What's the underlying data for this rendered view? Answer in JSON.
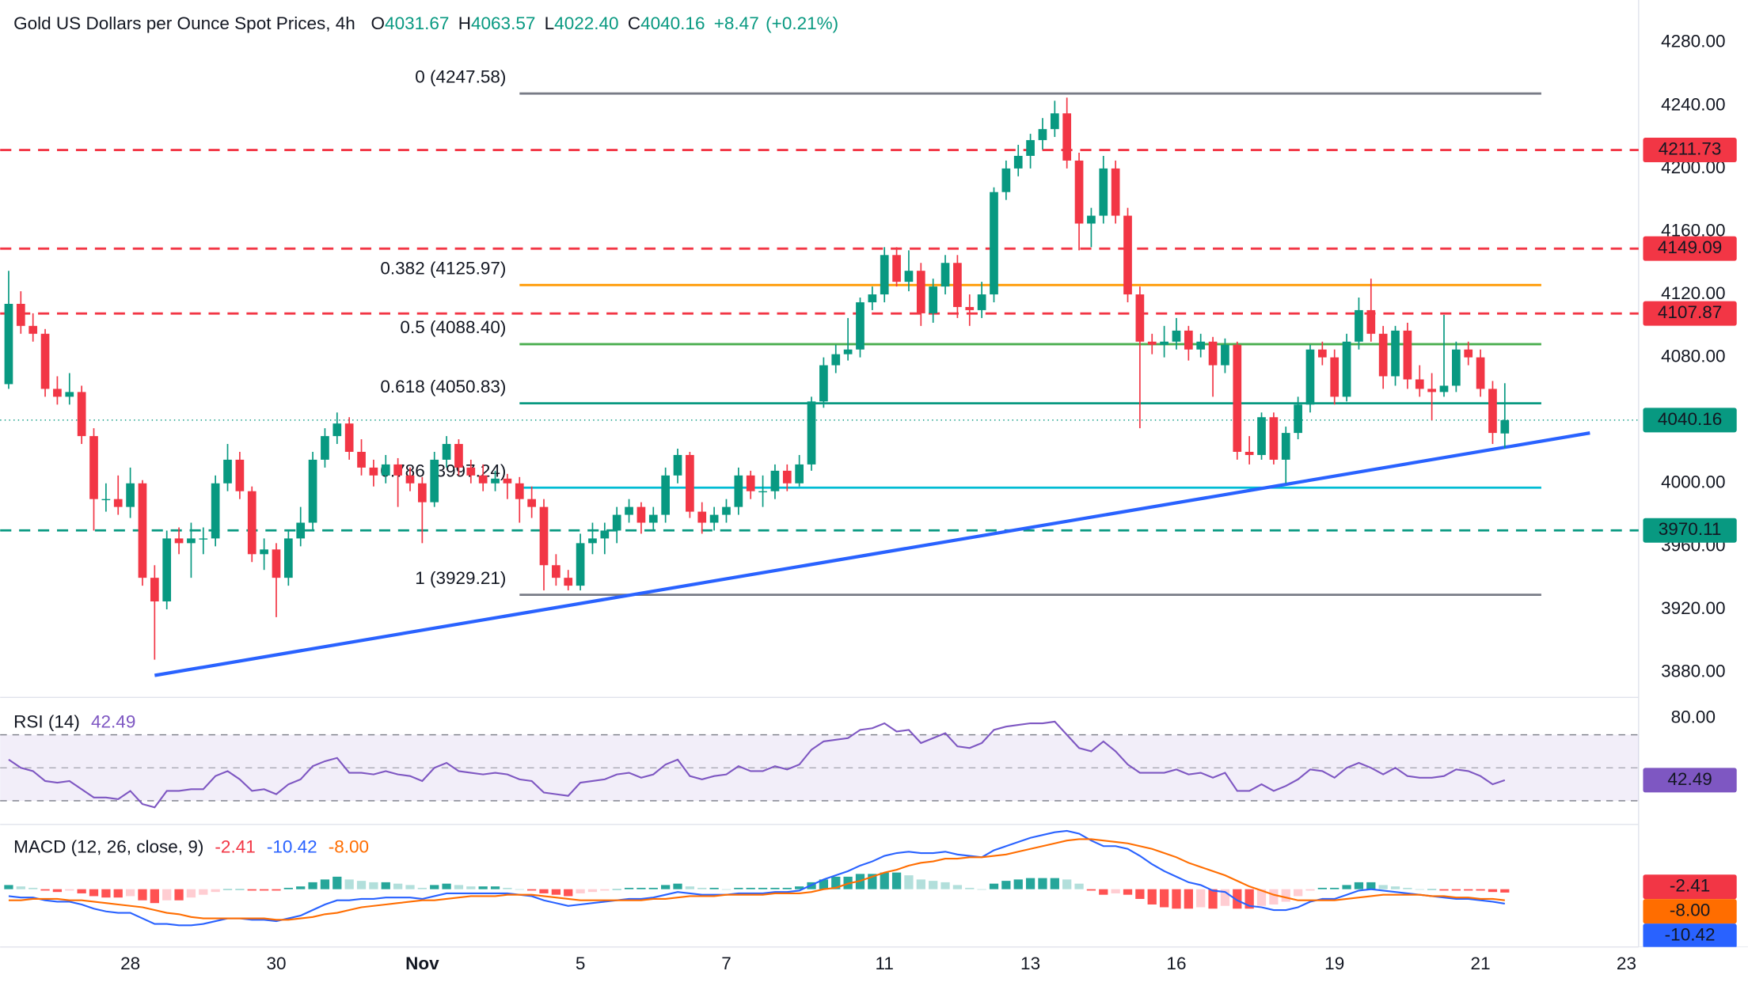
{
  "chart_data": {
    "type": "candlestick",
    "title": "Gold US Dollars per Ounce Spot Prices, 4h",
    "ohlc_header": {
      "open_key": "O",
      "open": "4031.67",
      "high_key": "H",
      "high": "4063.57",
      "low_key": "L",
      "low": "4022.40",
      "close_key": "C",
      "close": "4040.16",
      "change": "+8.47",
      "change_pct": "(+0.21%)"
    },
    "up_color": "#089981",
    "down_color": "#f23645",
    "candles": [
      [
        4063,
        4135,
        4060,
        4114
      ],
      [
        4114,
        4122,
        4095,
        4100
      ],
      [
        4100,
        4108,
        4090,
        4095
      ],
      [
        4095,
        4098,
        4055,
        4060
      ],
      [
        4060,
        4068,
        4050,
        4055
      ],
      [
        4055,
        4070,
        4050,
        4058
      ],
      [
        4058,
        4062,
        4025,
        4030
      ],
      [
        4030,
        4035,
        3970,
        3990
      ],
      [
        3990,
        4000,
        3982,
        3990
      ],
      [
        3990,
        4005,
        3980,
        3985
      ],
      [
        3985,
        4010,
        3978,
        4000
      ],
      [
        4000,
        4002,
        3935,
        3940
      ],
      [
        3940,
        3948,
        3888,
        3925
      ],
      [
        3925,
        3970,
        3920,
        3965
      ],
      [
        3965,
        3972,
        3955,
        3962
      ],
      [
        3962,
        3975,
        3940,
        3965
      ],
      [
        3965,
        3972,
        3955,
        3965
      ],
      [
        3965,
        4005,
        3960,
        4000
      ],
      [
        4000,
        4025,
        3995,
        4015
      ],
      [
        4015,
        4020,
        3990,
        3995
      ],
      [
        3995,
        3998,
        3950,
        3955
      ],
      [
        3955,
        3965,
        3945,
        3958
      ],
      [
        3958,
        3962,
        3915,
        3940
      ],
      [
        3940,
        3970,
        3935,
        3965
      ],
      [
        3965,
        3985,
        3960,
        3975
      ],
      [
        3975,
        4020,
        3970,
        4015
      ],
      [
        4015,
        4035,
        4010,
        4030
      ],
      [
        4030,
        4045,
        4025,
        4038
      ],
      [
        4038,
        4042,
        4015,
        4020
      ],
      [
        4020,
        4028,
        4005,
        4010
      ],
      [
        4010,
        4015,
        3998,
        4005
      ],
      [
        4005,
        4018,
        4000,
        4012
      ],
      [
        4012,
        4016,
        3985,
        4005
      ],
      [
        4005,
        4010,
        3995,
        4000
      ],
      [
        4000,
        4004,
        3962,
        3988
      ],
      [
        3988,
        4020,
        3985,
        4015
      ],
      [
        4015,
        4030,
        4010,
        4025
      ],
      [
        4025,
        4028,
        4005,
        4010
      ],
      [
        4010,
        4015,
        4000,
        4005
      ],
      [
        4005,
        4012,
        3995,
        4000
      ],
      [
        4000,
        4008,
        3995,
        4003
      ],
      [
        4003,
        4006,
        3990,
        4000
      ],
      [
        4000,
        4004,
        3975,
        3990
      ],
      [
        3990,
        3998,
        3978,
        3985
      ],
      [
        3985,
        3990,
        3932,
        3948
      ],
      [
        3948,
        3955,
        3935,
        3940
      ],
      [
        3940,
        3945,
        3932,
        3935
      ],
      [
        3935,
        3968,
        3932,
        3962
      ],
      [
        3962,
        3975,
        3955,
        3965
      ],
      [
        3965,
        3975,
        3955,
        3970
      ],
      [
        3970,
        3985,
        3962,
        3980
      ],
      [
        3980,
        3990,
        3975,
        3985
      ],
      [
        3985,
        3988,
        3968,
        3975
      ],
      [
        3975,
        3985,
        3970,
        3980
      ],
      [
        3980,
        4010,
        3975,
        4005
      ],
      [
        4005,
        4022,
        4000,
        4018
      ],
      [
        4018,
        4020,
        3978,
        3982
      ],
      [
        3982,
        3988,
        3968,
        3975
      ],
      [
        3975,
        3985,
        3970,
        3980
      ],
      [
        3980,
        3990,
        3975,
        3985
      ],
      [
        3985,
        4010,
        3980,
        4005
      ],
      [
        4005,
        4008,
        3990,
        3995
      ],
      [
        3995,
        4005,
        3985,
        3995
      ],
      [
        3995,
        4012,
        3990,
        4008
      ],
      [
        4008,
        4012,
        3995,
        4000
      ],
      [
        4000,
        4018,
        3998,
        4012
      ],
      [
        4012,
        4055,
        4008,
        4052
      ],
      [
        4052,
        4080,
        4048,
        4075
      ],
      [
        4075,
        4088,
        4070,
        4082
      ],
      [
        4082,
        4105,
        4078,
        4085
      ],
      [
        4085,
        4118,
        4080,
        4115
      ],
      [
        4115,
        4125,
        4110,
        4120
      ],
      [
        4120,
        4150,
        4115,
        4145
      ],
      [
        4145,
        4150,
        4125,
        4128
      ],
      [
        4128,
        4148,
        4122,
        4135
      ],
      [
        4135,
        4140,
        4100,
        4108
      ],
      [
        4108,
        4130,
        4102,
        4125
      ],
      [
        4125,
        4145,
        4120,
        4140
      ],
      [
        4140,
        4145,
        4105,
        4112
      ],
      [
        4112,
        4120,
        4100,
        4110
      ],
      [
        4110,
        4128,
        4105,
        4120
      ],
      [
        4120,
        4188,
        4115,
        4185
      ],
      [
        4185,
        4205,
        4180,
        4200
      ],
      [
        4200,
        4215,
        4195,
        4208
      ],
      [
        4208,
        4222,
        4200,
        4218
      ],
      [
        4218,
        4232,
        4212,
        4225
      ],
      [
        4225,
        4243,
        4220,
        4235
      ],
      [
        4235,
        4245,
        4200,
        4205
      ],
      [
        4205,
        4210,
        4148,
        4165
      ],
      [
        4165,
        4175,
        4150,
        4170
      ],
      [
        4170,
        4208,
        4165,
        4200
      ],
      [
        4200,
        4205,
        4165,
        4170
      ],
      [
        4170,
        4175,
        4115,
        4120
      ],
      [
        4120,
        4125,
        4035,
        4090
      ],
      [
        4090,
        4095,
        4082,
        4088
      ],
      [
        4088,
        4100,
        4080,
        4090
      ],
      [
        4090,
        4105,
        4085,
        4097
      ],
      [
        4097,
        4100,
        4078,
        4085
      ],
      [
        4085,
        4095,
        4080,
        4090
      ],
      [
        4090,
        4093,
        4055,
        4075
      ],
      [
        4075,
        4092,
        4070,
        4088
      ],
      [
        4088,
        4090,
        4015,
        4020
      ],
      [
        4020,
        4030,
        4012,
        4018
      ],
      [
        4018,
        4045,
        4015,
        4042
      ],
      [
        4042,
        4045,
        4012,
        4015
      ],
      [
        4015,
        4036,
        4000,
        4032
      ],
      [
        4032,
        4055,
        4028,
        4050
      ],
      [
        4050,
        4088,
        4045,
        4085
      ],
      [
        4085,
        4090,
        4075,
        4080
      ],
      [
        4080,
        4085,
        4050,
        4055
      ],
      [
        4055,
        4095,
        4052,
        4090
      ],
      [
        4090,
        4118,
        4085,
        4110
      ],
      [
        4110,
        4130,
        4090,
        4095
      ],
      [
        4095,
        4100,
        4060,
        4068
      ],
      [
        4068,
        4100,
        4062,
        4097
      ],
      [
        4097,
        4102,
        4060,
        4066
      ],
      [
        4066,
        4075,
        4055,
        4060
      ],
      [
        4060,
        4070,
        4040,
        4058
      ],
      [
        4058,
        4107,
        4055,
        4062
      ],
      [
        4062,
        4090,
        4058,
        4085
      ],
      [
        4085,
        4090,
        4075,
        4080
      ],
      [
        4080,
        4085,
        4055,
        4060
      ],
      [
        4060,
        4065,
        4025,
        4032
      ],
      [
        4031.67,
        4063.57,
        4022.4,
        4040.16
      ]
    ],
    "xlim": [
      -0.7,
      134
    ],
    "xticks": [
      {
        "value": 10,
        "label": "28"
      },
      {
        "value": 22,
        "label": "30"
      },
      {
        "value": 34,
        "label": "Nov"
      },
      {
        "value": 47,
        "label": "5"
      },
      {
        "value": 59,
        "label": "7"
      },
      {
        "value": 72,
        "label": "11"
      },
      {
        "value": 84,
        "label": "13"
      },
      {
        "value": 96,
        "label": "16"
      },
      {
        "value": 109,
        "label": "19"
      },
      {
        "value": 121,
        "label": "21"
      },
      {
        "value": 133,
        "label": "23"
      }
    ],
    "ylim": [
      3864,
      4307
    ],
    "yticks": [
      {
        "value": 3880,
        "label": "3880.00"
      },
      {
        "value": 3920,
        "label": "3920.00"
      },
      {
        "value": 3960,
        "label": "3960.00"
      },
      {
        "value": 4000,
        "label": "4000.00"
      },
      {
        "value": 4040,
        "label": "4040.00"
      },
      {
        "value": 4080,
        "label": "4080.00"
      },
      {
        "value": 4120,
        "label": "4120.00"
      },
      {
        "value": 4160,
        "label": "4160.00"
      },
      {
        "value": 4200,
        "label": "4200.00"
      },
      {
        "value": 4240,
        "label": "4240.00"
      },
      {
        "value": 4280,
        "label": "4280.00"
      }
    ],
    "grid": false,
    "fib": {
      "x": [
        42,
        126
      ],
      "levels": [
        {
          "value": 4247.58,
          "label": "0 (4247.58)",
          "color": "#787b86"
        },
        {
          "value": 4125.97,
          "label": "0.382 (4125.97)",
          "color": "#ff9800"
        },
        {
          "value": 4088.4,
          "label": "0.5 (4088.40)",
          "color": "#4caf50"
        },
        {
          "value": 4050.83,
          "label": "0.618 (4050.83)",
          "color": "#089981"
        },
        {
          "value": 3997.24,
          "label": "0.786 (3997.24)",
          "color": "#00bcd4"
        },
        {
          "value": 3929.21,
          "label": "1 (3929.21)",
          "color": "#787b86"
        }
      ]
    },
    "levels": [
      {
        "value": 4211.73,
        "color": "#f23645"
      },
      {
        "value": 4149.09,
        "color": "#f23645"
      },
      {
        "value": 4107.87,
        "color": "#f23645"
      },
      {
        "value": 3970.11,
        "color": "#089981"
      }
    ],
    "last_price": 4040.16,
    "trendline": {
      "x": [
        12,
        130
      ],
      "y": [
        3878,
        4032
      ],
      "color": "#2962ff"
    },
    "rsi": {
      "title": "RSI (14)",
      "current": 42.49,
      "color": "#7e57c2",
      "ylim": [
        17,
        92
      ],
      "yticks": [
        {
          "value": 80,
          "label": "80.00"
        }
      ],
      "bands": [
        30,
        70
      ],
      "midline": 50,
      "values": [
        55,
        50,
        48,
        42,
        41,
        42,
        37,
        32,
        32,
        31,
        36,
        28,
        26,
        36,
        36,
        37,
        37,
        45,
        48,
        43,
        36,
        37,
        34,
        40,
        43,
        51,
        54,
        56,
        47,
        47,
        46,
        48,
        46,
        45,
        42,
        50,
        53,
        48,
        47,
        46,
        47,
        46,
        43,
        42,
        35,
        34,
        33,
        41,
        42,
        43,
        46,
        47,
        44,
        46,
        52,
        55,
        45,
        43,
        45,
        46,
        51,
        48,
        48,
        51,
        49,
        52,
        61,
        66,
        67,
        68,
        73,
        74,
        77,
        72,
        73,
        65,
        68,
        71,
        63,
        62,
        65,
        73,
        75,
        76,
        77,
        77,
        78,
        70,
        62,
        60,
        66,
        60,
        52,
        47,
        47,
        47,
        49,
        46,
        47,
        44,
        47,
        36,
        36,
        40,
        36,
        39,
        43,
        49,
        48,
        44,
        50,
        53,
        50,
        46,
        50,
        45,
        44,
        44,
        45,
        49,
        48,
        45,
        40,
        42.49
      ]
    },
    "macd": {
      "title": "MACD (12, 26, close, 9)",
      "hist_current": "-2.41",
      "macd_current": "-10.42",
      "signal_current": "-8.00",
      "ylim": [
        -40,
        45
      ],
      "macd_color": "#2962ff",
      "signal_color": "#ff6d00",
      "hist_colors": [
        "#26a69a",
        "#b2dfdb",
        "#ff5252",
        "#ffcdd2"
      ],
      "macd": [
        -5,
        -6,
        -6,
        -8,
        -9,
        -9,
        -11,
        -14,
        -16,
        -17,
        -17,
        -21,
        -25,
        -25,
        -26,
        -26,
        -25,
        -23,
        -21,
        -21,
        -22,
        -22,
        -23,
        -21,
        -19,
        -15,
        -11,
        -8,
        -8,
        -7,
        -7,
        -6,
        -6,
        -6,
        -7,
        -5,
        -3,
        -3,
        -3,
        -3,
        -3,
        -3,
        -4,
        -5,
        -8,
        -10,
        -12,
        -11,
        -10,
        -9,
        -8,
        -7,
        -7,
        -6,
        -4,
        -2,
        -3,
        -4,
        -4,
        -4,
        -3,
        -3,
        -3,
        -2,
        -2,
        -1,
        3,
        7,
        10,
        13,
        17,
        20,
        24,
        26,
        27,
        26,
        26,
        27,
        25,
        24,
        23,
        28,
        31,
        34,
        37,
        39,
        41,
        42,
        40,
        35,
        31,
        31,
        29,
        24,
        18,
        13,
        9,
        5,
        3,
        -1,
        -2,
        -8,
        -12,
        -13,
        -15,
        -15,
        -13,
        -9,
        -7,
        -7,
        -4,
        -1,
        0,
        -1,
        -2,
        -3,
        -4,
        -5,
        -6,
        -7,
        -7,
        -8,
        -9,
        -10.42
      ],
      "signal": [
        -8,
        -8,
        -7,
        -7,
        -7,
        -8,
        -8,
        -9,
        -10,
        -11,
        -12,
        -13,
        -15,
        -17,
        -18,
        -20,
        -21,
        -21,
        -21,
        -21,
        -21,
        -21,
        -22,
        -22,
        -21,
        -20,
        -18,
        -17,
        -15,
        -13,
        -12,
        -11,
        -10,
        -9,
        -8,
        -8,
        -7,
        -6,
        -5,
        -5,
        -5,
        -4,
        -4,
        -4,
        -5,
        -6,
        -7,
        -8,
        -8,
        -8,
        -8,
        -8,
        -8,
        -7,
        -7,
        -6,
        -5,
        -5,
        -5,
        -4,
        -4,
        -4,
        -4,
        -3,
        -3,
        -3,
        -2,
        0,
        1,
        4,
        6,
        9,
        12,
        14,
        17,
        19,
        20,
        22,
        22,
        23,
        23,
        24,
        25,
        27,
        29,
        31,
        33,
        35,
        36,
        36,
        35,
        34,
        33,
        31,
        29,
        26,
        23,
        19,
        16,
        13,
        10,
        6,
        2,
        -1,
        -4,
        -6,
        -8,
        -8,
        -8,
        -8,
        -7,
        -6,
        -5,
        -4,
        -4,
        -4,
        -4,
        -5,
        -5,
        -6,
        -6,
        -7,
        -7,
        -8.0
      ],
      "hist": [
        3,
        2,
        1,
        -1,
        -2,
        -1,
        -3,
        -5,
        -6,
        -6,
        -5,
        -8,
        -10,
        -8,
        -8,
        -6,
        -4,
        -2,
        0,
        0,
        -1,
        -1,
        -1,
        1,
        2,
        5,
        7,
        9,
        7,
        6,
        5,
        5,
        4,
        3,
        1,
        3,
        4,
        3,
        2,
        2,
        2,
        1,
        0,
        -1,
        -3,
        -4,
        -5,
        -3,
        -2,
        -1,
        0,
        1,
        1,
        1,
        3,
        4,
        2,
        1,
        1,
        0,
        1,
        1,
        1,
        1,
        1,
        2,
        5,
        7,
        9,
        9,
        11,
        11,
        12,
        12,
        10,
        7,
        6,
        5,
        3,
        1,
        0,
        4,
        6,
        7,
        8,
        8,
        8,
        7,
        4,
        -1,
        -4,
        -3,
        -4,
        -7,
        -11,
        -13,
        -14,
        -14,
        -13,
        -14,
        -12,
        -14,
        -14,
        -12,
        -11,
        -9,
        -5,
        -1,
        1,
        1,
        3,
        5,
        5,
        3,
        2,
        1,
        0,
        0,
        -1,
        -1,
        -1,
        -1,
        -2,
        -2.41
      ]
    }
  }
}
